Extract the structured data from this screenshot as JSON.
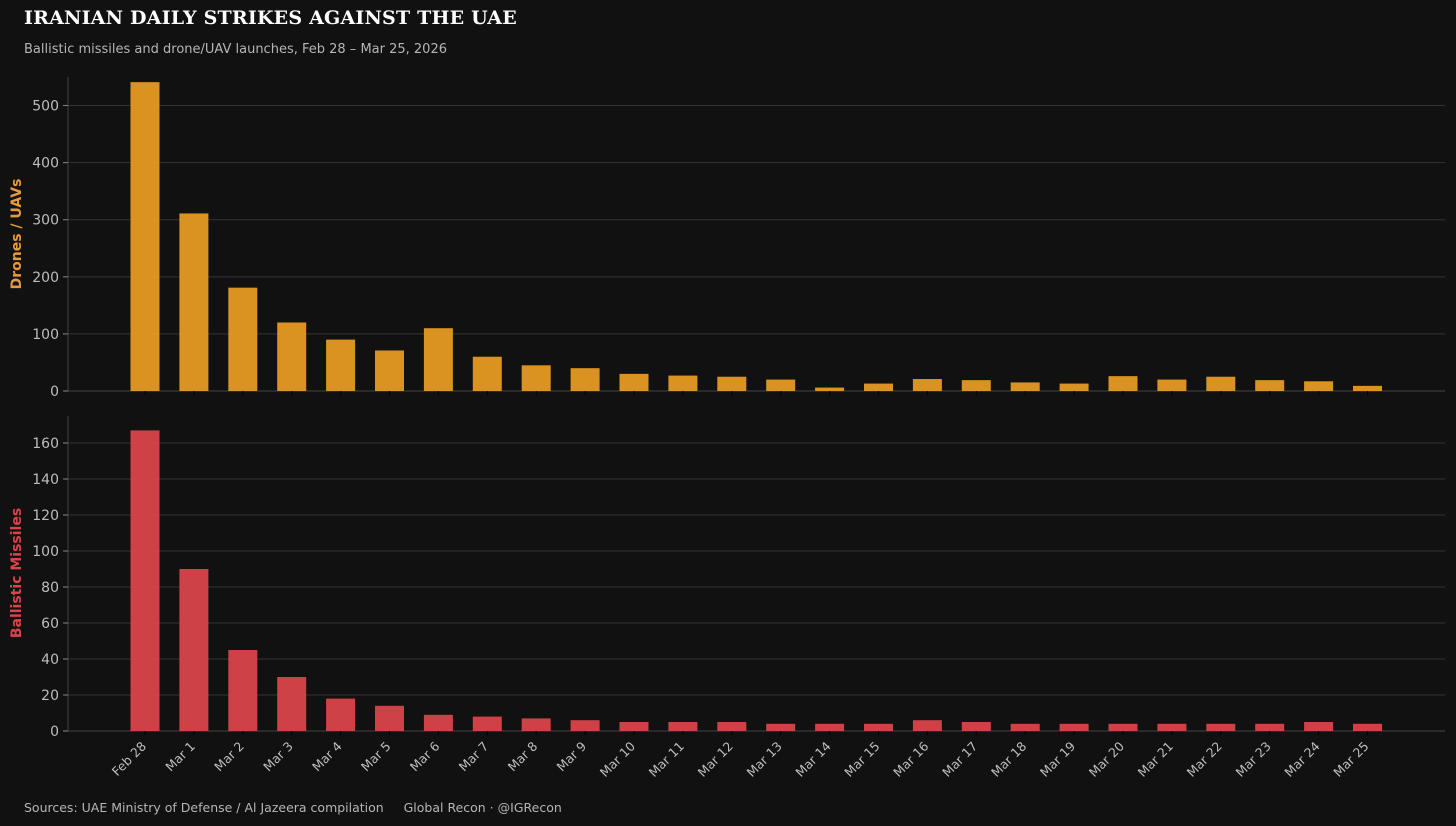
{
  "header": {
    "title": "IRANIAN DAILY STRIKES AGAINST THE UAE",
    "subtitle": "Ballistic missiles and drone/UAV launches, Feb 28 – Mar 25, 2026"
  },
  "footer": {
    "sources": "Sources: UAE Ministry of Defense / Al Jazeera compilation",
    "credit": "Global Recon · @IGRecon"
  },
  "colors": {
    "background": "#111111",
    "grid": "#333333",
    "drones": "#e69a22",
    "missiles": "#d9444a",
    "drones_label": "#e69a3a",
    "missiles_label": "#d9444a"
  },
  "chart_data": [
    {
      "type": "bar",
      "ylabel": "Drones / UAVs",
      "ylim": [
        0,
        550
      ],
      "yticks": [
        0,
        100,
        200,
        300,
        400,
        500
      ],
      "grid": true,
      "categories": [
        "Feb 28",
        "Mar 1",
        "Mar 2",
        "Mar 3",
        "Mar 4",
        "Mar 5",
        "Mar 6",
        "Mar 7",
        "Mar 8",
        "Mar 9",
        "Mar 10",
        "Mar 11",
        "Mar 12",
        "Mar 13",
        "Mar 14",
        "Mar 15",
        "Mar 16",
        "Mar 17",
        "Mar 18",
        "Mar 19",
        "Mar 20",
        "Mar 21",
        "Mar 22",
        "Mar 23",
        "Mar 24",
        "Mar 25"
      ],
      "values": [
        541,
        311,
        181,
        120,
        90,
        71,
        110,
        60,
        45,
        40,
        30,
        27,
        25,
        20,
        6,
        13,
        21,
        19,
        15,
        13,
        26,
        20,
        25,
        19,
        17,
        9
      ]
    },
    {
      "type": "bar",
      "ylabel": "Ballistic Missiles",
      "ylim": [
        0,
        175
      ],
      "yticks": [
        0,
        20,
        40,
        60,
        80,
        100,
        120,
        140,
        160
      ],
      "grid": true,
      "categories": [
        "Feb 28",
        "Mar 1",
        "Mar 2",
        "Mar 3",
        "Mar 4",
        "Mar 5",
        "Mar 6",
        "Mar 7",
        "Mar 8",
        "Mar 9",
        "Mar 10",
        "Mar 11",
        "Mar 12",
        "Mar 13",
        "Mar 14",
        "Mar 15",
        "Mar 16",
        "Mar 17",
        "Mar 18",
        "Mar 19",
        "Mar 20",
        "Mar 21",
        "Mar 22",
        "Mar 23",
        "Mar 24",
        "Mar 25"
      ],
      "values": [
        167,
        90,
        45,
        30,
        18,
        14,
        9,
        8,
        7,
        6,
        5,
        5,
        5,
        4,
        4,
        4,
        6,
        5,
        4,
        4,
        4,
        4,
        4,
        4,
        5,
        4
      ]
    }
  ]
}
